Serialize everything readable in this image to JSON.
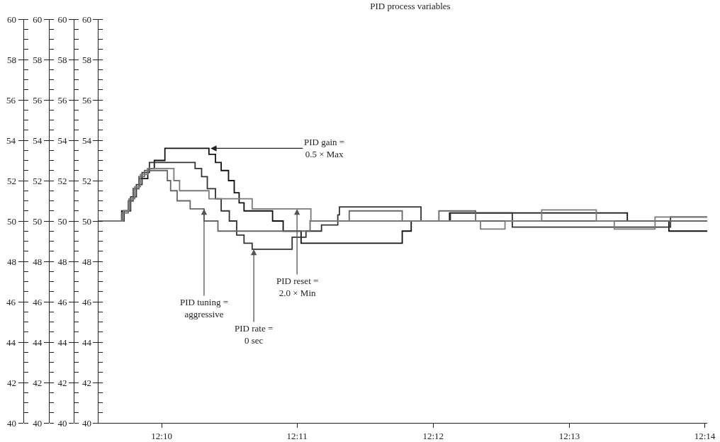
{
  "chart_data": {
    "type": "step",
    "title": "PID process variables",
    "xlim": [
      12.159,
      12.2336
    ],
    "xticks": [
      {
        "value": 12.1667,
        "label": "12:10"
      },
      {
        "value": 12.1833,
        "label": "12:11"
      },
      {
        "value": 12.2,
        "label": "12:12"
      },
      {
        "value": 12.2167,
        "label": "12:13"
      },
      {
        "value": 12.2333,
        "label": "12:14"
      }
    ],
    "ylim": [
      40,
      60
    ],
    "yticks": [
      40,
      42,
      44,
      46,
      48,
      50,
      52,
      54,
      56,
      58,
      60
    ],
    "y2lim": [
      40,
      60
    ],
    "y2ticks": [
      40,
      42,
      44,
      46,
      48,
      50,
      52,
      54,
      56,
      58,
      60
    ],
    "y3lim": [
      40,
      60
    ],
    "y3ticks": [
      40,
      42,
      44,
      46,
      48,
      50,
      52,
      54,
      56,
      58,
      60
    ],
    "marker": "none",
    "line_style": "solid",
    "series": [
      {
        "color": "#111111",
        "axis": "y",
        "x": [
          12.159,
          12.1618,
          12.1627,
          12.1632,
          12.1639,
          12.165,
          12.1658,
          12.1671,
          12.1725,
          12.1733,
          12.174,
          12.1749,
          12.1756,
          12.1762,
          12.1768,
          12.1803,
          12.1816,
          12.1838,
          12.1962,
          12.1973,
          12.202,
          12.2238,
          12.2239,
          12.2289,
          12.2336
        ],
        "values": [
          50.0,
          50.5,
          51.0,
          51.6,
          52.1,
          52.6,
          53.0,
          53.6,
          53.3,
          52.9,
          52.5,
          52.0,
          51.4,
          50.9,
          50.5,
          50.0,
          49.5,
          48.9,
          49.5,
          50.0,
          50.4,
          50.0,
          50.0,
          49.5,
          49.5
        ]
      },
      {
        "color": "#333333",
        "axis": "y2",
        "x": [
          12.159,
          12.1621,
          12.1629,
          12.1636,
          12.1643,
          12.1652,
          12.1699,
          12.1708,
          12.1716,
          12.1723,
          12.1733,
          12.174,
          12.175,
          12.1759,
          12.1768,
          12.1778,
          12.1823,
          12.1827,
          12.1844,
          12.1863,
          12.1883,
          12.1885,
          12.1981,
          12.1985,
          12.2015,
          12.2021,
          12.2092,
          12.2097,
          12.2289,
          12.2291,
          12.2336
        ],
        "values": [
          50.0,
          50.5,
          51.2,
          51.8,
          52.4,
          52.9,
          52.9,
          52.6,
          52.2,
          51.6,
          51.1,
          50.5,
          50.0,
          49.3,
          48.9,
          48.6,
          48.6,
          49.2,
          49.5,
          49.8,
          50.3,
          50.7,
          50.7,
          50.0,
          50.0,
          50.4,
          50.4,
          49.7,
          49.7,
          50.2,
          50.2
        ]
      },
      {
        "color": "#666666",
        "axis": "y3",
        "x": [
          12.159,
          12.1618,
          12.1626,
          12.1632,
          12.1639,
          12.1646,
          12.1674,
          12.1678,
          12.1686,
          12.1702,
          12.1719,
          12.1736,
          12.1791,
          12.1849,
          12.1897,
          12.1962,
          12.2007,
          12.2052,
          12.2336
        ],
        "values": [
          50.0,
          50.4,
          51.0,
          51.6,
          52.2,
          52.5,
          52.0,
          51.5,
          51.0,
          50.6,
          50.0,
          49.5,
          49.5,
          50.0,
          50.5,
          50.0,
          50.5,
          50.0,
          50.0
        ]
      },
      {
        "color": "#7a7a7a",
        "axis": "y3",
        "x": [
          12.159,
          12.162,
          12.1627,
          12.1634,
          12.1641,
          12.165,
          12.1682,
          12.1689,
          12.1697,
          12.1725,
          12.1733,
          12.1774,
          12.1778,
          12.1846,
          12.185,
          12.2058,
          12.2088,
          12.2133,
          12.22,
          12.2222,
          12.2272,
          12.2336
        ],
        "values": [
          50.0,
          50.5,
          51.1,
          51.7,
          52.3,
          52.6,
          52.0,
          51.5,
          51.5,
          51.1,
          51.1,
          51.1,
          50.6,
          50.6,
          50.0,
          49.6,
          50.0,
          50.55,
          50.0,
          49.6,
          50.2,
          50.2
        ]
      }
    ],
    "annotations": [
      {
        "text": "PID gain =\n0.5 × Max",
        "x": 12.1727,
        "y": 53.6
      },
      {
        "text": "PID tuning =\naggressive",
        "x": 12.1719,
        "y": 50.6
      },
      {
        "text": "PID rate =\n0 sec",
        "x": 12.178,
        "y": 48.6
      },
      {
        "text": "PID reset =\n2.0 × Min",
        "x": 12.1833,
        "y": 50.6
      },
      "40",
      "42",
      "44",
      "46",
      "48",
      "50",
      "52",
      "54",
      "56",
      "58",
      "60"
    ]
  }
}
